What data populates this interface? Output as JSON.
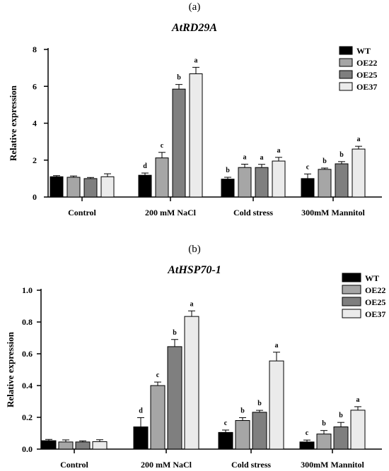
{
  "chart_data": [
    {
      "type": "bar",
      "panel_label": "(a)",
      "title": "AtRD29A",
      "xlabel": "",
      "ylabel": "Relative expression",
      "ylim": [
        0,
        8
      ],
      "yticks": [
        "0",
        "2",
        "4",
        "6",
        "8"
      ],
      "categories": [
        "Control",
        "200 mM NaCl",
        "Cold stress",
        "300mM Mannitol"
      ],
      "legend_position": "top-right",
      "grid": false,
      "series": [
        {
          "name": "WT",
          "color": "#000000",
          "values": [
            1.1,
            1.18,
            0.97,
            1.0
          ],
          "errors": [
            0.06,
            0.12,
            0.1,
            0.25
          ],
          "letters": [
            "",
            "d",
            "b",
            "c"
          ]
        },
        {
          "name": "OE22",
          "color": "#a6a6a6",
          "values": [
            1.07,
            2.12,
            1.6,
            1.5
          ],
          "errors": [
            0.07,
            0.3,
            0.18,
            0.07
          ],
          "letters": [
            "",
            "c",
            "a",
            "b"
          ]
        },
        {
          "name": "OE25",
          "color": "#7f7f7f",
          "values": [
            1.0,
            5.85,
            1.6,
            1.8
          ],
          "errors": [
            0.06,
            0.25,
            0.17,
            0.12
          ],
          "letters": [
            "",
            "b",
            "a",
            "b"
          ]
        },
        {
          "name": "OE37",
          "color": "#ebebeb",
          "values": [
            1.1,
            6.68,
            1.95,
            2.6
          ],
          "errors": [
            0.16,
            0.35,
            0.2,
            0.15
          ],
          "letters": [
            "",
            "a",
            "a",
            "a"
          ]
        }
      ]
    },
    {
      "type": "bar",
      "panel_label": "(b)",
      "title": "AtHSP70-1",
      "xlabel": "",
      "ylabel": "Relative expression",
      "ylim": [
        0,
        1.0
      ],
      "yticks": [
        "0.0",
        "0.2",
        "0.4",
        "0.6",
        "0.8",
        "1.0"
      ],
      "categories": [
        "Control",
        "200 mM NaCl",
        "Cold stress",
        "300mM Mannitol"
      ],
      "legend_position": "top-right",
      "grid": false,
      "series": [
        {
          "name": "WT",
          "color": "#000000",
          "values": [
            0.053,
            0.14,
            0.105,
            0.045
          ],
          "errors": [
            0.008,
            0.058,
            0.015,
            0.012
          ],
          "letters": [
            "",
            "d",
            "c",
            "c"
          ]
        },
        {
          "name": "OE22",
          "color": "#a6a6a6",
          "values": [
            0.045,
            0.4,
            0.18,
            0.095
          ],
          "errors": [
            0.013,
            0.022,
            0.018,
            0.022
          ],
          "letters": [
            "",
            "c",
            "b",
            "b"
          ]
        },
        {
          "name": "OE25",
          "color": "#7f7f7f",
          "values": [
            0.045,
            0.645,
            0.232,
            0.14
          ],
          "errors": [
            0.007,
            0.045,
            0.012,
            0.028
          ],
          "letters": [
            "",
            "b",
            "b",
            "b"
          ]
        },
        {
          "name": "OE37",
          "color": "#ebebeb",
          "values": [
            0.047,
            0.835,
            0.555,
            0.245
          ],
          "errors": [
            0.012,
            0.035,
            0.055,
            0.022
          ],
          "letters": [
            "",
            "a",
            "a",
            "a"
          ]
        }
      ]
    }
  ]
}
